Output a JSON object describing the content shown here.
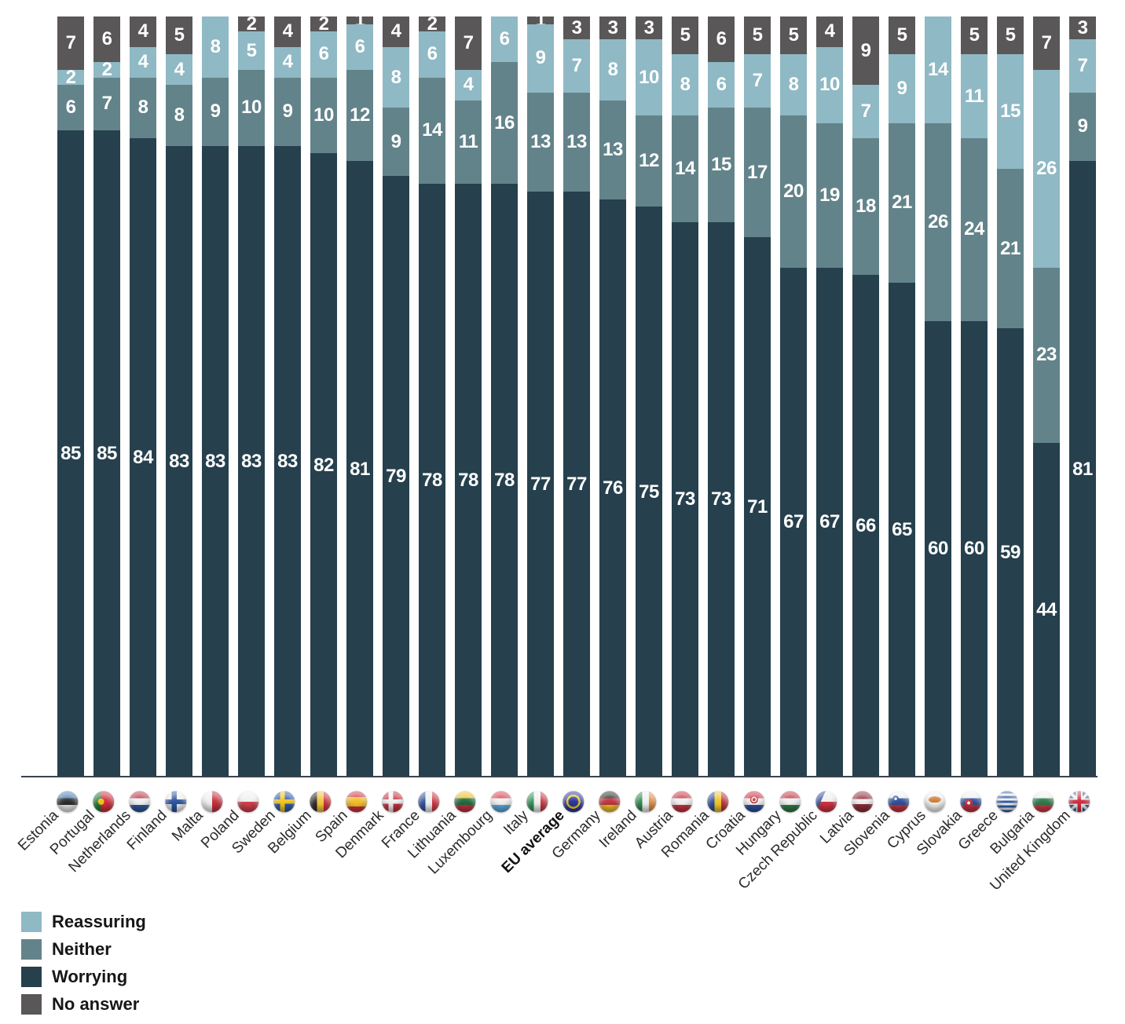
{
  "chart_data": {
    "type": "bar",
    "variant": "stacked-100-percent",
    "title": "",
    "xlabel": "",
    "ylabel": "",
    "ylim": [
      0,
      100
    ],
    "grid": false,
    "legend_position": "bottom-left",
    "legend": [
      {
        "key": "reassuring",
        "label": "Reassuring",
        "color": "#8fb9c4"
      },
      {
        "key": "neither",
        "label": "Neither",
        "color": "#63838a"
      },
      {
        "key": "worrying",
        "label": "Worrying",
        "color": "#26404d"
      },
      {
        "key": "no_answer",
        "label": "No answer",
        "color": "#5a5758"
      }
    ],
    "stack_order_top_to_bottom": [
      "no_answer",
      "reassuring",
      "neither",
      "worrying"
    ],
    "categories": [
      {
        "label": "Estonia",
        "flag": "ee",
        "bold": false,
        "values": {
          "worrying": 85,
          "neither": 6,
          "reassuring": 2,
          "no_answer": 7
        }
      },
      {
        "label": "Portugal",
        "flag": "pt",
        "bold": false,
        "values": {
          "worrying": 85,
          "neither": 7,
          "reassuring": 2,
          "no_answer": 6
        }
      },
      {
        "label": "Netherlands",
        "flag": "nl",
        "bold": false,
        "values": {
          "worrying": 84,
          "neither": 8,
          "reassuring": 4,
          "no_answer": 4
        }
      },
      {
        "label": "Finland",
        "flag": "fi",
        "bold": false,
        "values": {
          "worrying": 83,
          "neither": 8,
          "reassuring": 4,
          "no_answer": 5
        }
      },
      {
        "label": "Malta",
        "flag": "mt",
        "bold": false,
        "values": {
          "worrying": 83,
          "neither": 9,
          "reassuring": 8,
          "no_answer": 0
        }
      },
      {
        "label": "Poland",
        "flag": "pl",
        "bold": false,
        "values": {
          "worrying": 83,
          "neither": 10,
          "reassuring": 5,
          "no_answer": 2
        }
      },
      {
        "label": "Sweden",
        "flag": "se",
        "bold": false,
        "values": {
          "worrying": 83,
          "neither": 9,
          "reassuring": 4,
          "no_answer": 4
        }
      },
      {
        "label": "Belgium",
        "flag": "be",
        "bold": false,
        "values": {
          "worrying": 82,
          "neither": 10,
          "reassuring": 6,
          "no_answer": 2
        }
      },
      {
        "label": "Spain",
        "flag": "es",
        "bold": false,
        "values": {
          "worrying": 81,
          "neither": 12,
          "reassuring": 6,
          "no_answer": 1
        }
      },
      {
        "label": "Denmark",
        "flag": "dk",
        "bold": false,
        "values": {
          "worrying": 79,
          "neither": 9,
          "reassuring": 8,
          "no_answer": 4
        }
      },
      {
        "label": "France",
        "flag": "fr",
        "bold": false,
        "values": {
          "worrying": 78,
          "neither": 14,
          "reassuring": 6,
          "no_answer": 2
        }
      },
      {
        "label": "Lithuania",
        "flag": "lt",
        "bold": false,
        "values": {
          "worrying": 78,
          "neither": 11,
          "reassuring": 4,
          "no_answer": 7
        }
      },
      {
        "label": "Luxembourg",
        "flag": "lu",
        "bold": false,
        "values": {
          "worrying": 78,
          "neither": 16,
          "reassuring": 6,
          "no_answer": 0
        }
      },
      {
        "label": "Italy",
        "flag": "it",
        "bold": false,
        "values": {
          "worrying": 77,
          "neither": 13,
          "reassuring": 9,
          "no_answer": 1
        }
      },
      {
        "label": "EU average",
        "flag": "eu",
        "bold": true,
        "values": {
          "worrying": 77,
          "neither": 13,
          "reassuring": 7,
          "no_answer": 3
        }
      },
      {
        "label": "Germany",
        "flag": "de",
        "bold": false,
        "values": {
          "worrying": 76,
          "neither": 13,
          "reassuring": 8,
          "no_answer": 3
        }
      },
      {
        "label": "Ireland",
        "flag": "ie",
        "bold": false,
        "values": {
          "worrying": 75,
          "neither": 12,
          "reassuring": 10,
          "no_answer": 3
        }
      },
      {
        "label": "Austria",
        "flag": "at",
        "bold": false,
        "values": {
          "worrying": 73,
          "neither": 14,
          "reassuring": 8,
          "no_answer": 5
        }
      },
      {
        "label": "Romania",
        "flag": "ro",
        "bold": false,
        "values": {
          "worrying": 73,
          "neither": 15,
          "reassuring": 6,
          "no_answer": 6
        }
      },
      {
        "label": "Croatia",
        "flag": "hr",
        "bold": false,
        "values": {
          "worrying": 71,
          "neither": 17,
          "reassuring": 7,
          "no_answer": 5
        }
      },
      {
        "label": "Hungary",
        "flag": "hu",
        "bold": false,
        "values": {
          "worrying": 67,
          "neither": 20,
          "reassuring": 8,
          "no_answer": 5
        }
      },
      {
        "label": "Czech Republic",
        "flag": "cz",
        "bold": false,
        "values": {
          "worrying": 67,
          "neither": 19,
          "reassuring": 10,
          "no_answer": 4
        }
      },
      {
        "label": "Latvia",
        "flag": "lv",
        "bold": false,
        "values": {
          "worrying": 66,
          "neither": 18,
          "reassuring": 7,
          "no_answer": 9
        }
      },
      {
        "label": "Slovenia",
        "flag": "si",
        "bold": false,
        "values": {
          "worrying": 65,
          "neither": 21,
          "reassuring": 9,
          "no_answer": 5
        }
      },
      {
        "label": "Cyprus",
        "flag": "cy",
        "bold": false,
        "values": {
          "worrying": 60,
          "neither": 26,
          "reassuring": 14,
          "no_answer": 0
        }
      },
      {
        "label": "Slovakia",
        "flag": "sk",
        "bold": false,
        "values": {
          "worrying": 60,
          "neither": 24,
          "reassuring": 11,
          "no_answer": 5
        }
      },
      {
        "label": "Greece",
        "flag": "gr",
        "bold": false,
        "values": {
          "worrying": 59,
          "neither": 21,
          "reassuring": 15,
          "no_answer": 5
        }
      },
      {
        "label": "Bulgaria",
        "flag": "bg",
        "bold": false,
        "values": {
          "worrying": 44,
          "neither": 23,
          "reassuring": 26,
          "no_answer": 7
        }
      },
      {
        "label": "United Kingdom",
        "flag": "gb",
        "bold": false,
        "values": {
          "worrying": 81,
          "neither": 9,
          "reassuring": 7,
          "no_answer": 3
        }
      }
    ]
  }
}
